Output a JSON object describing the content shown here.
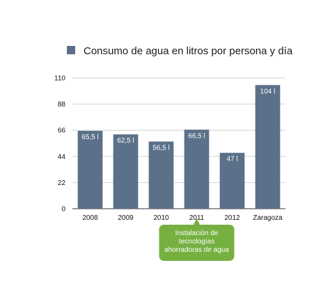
{
  "chart_data": {
    "type": "bar",
    "legend": {
      "label": "Consumo de agua en litros por persona y día",
      "placement": "top",
      "swatch_color": "#5b7089"
    },
    "categories": [
      "2008",
      "2009",
      "2010",
      "2011",
      "2012",
      "Zaragoza"
    ],
    "series": [
      {
        "name": "Consumo de agua en litros por persona y día",
        "values": [
          65.5,
          62.5,
          56.5,
          66.5,
          47,
          104
        ],
        "labels": [
          "65,5 l",
          "62,5 l",
          "56,5 l",
          "66,5 l",
          "47 l",
          "104 l"
        ],
        "color": "#5b7089"
      }
    ],
    "yticks": [
      "0",
      "22",
      "44",
      "66",
      "88",
      "110"
    ],
    "ylim": [
      0,
      110
    ],
    "grid": true,
    "annotation": {
      "lines": [
        "Instalación de",
        "tecnologías",
        "ahorradoras de agua"
      ],
      "points_to": "2011",
      "color": "#76b041"
    }
  }
}
